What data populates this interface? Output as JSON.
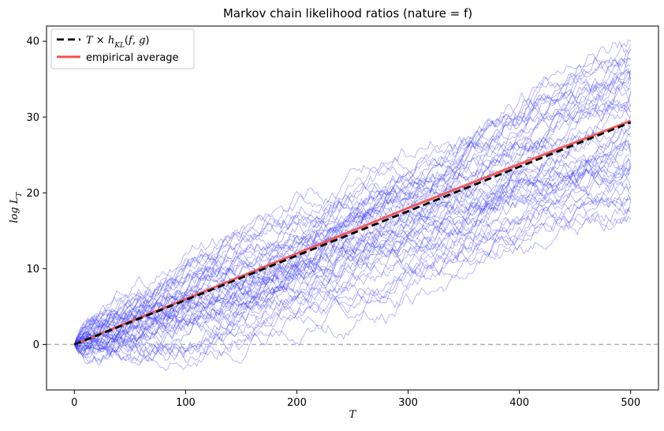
{
  "chart_data": {
    "type": "line",
    "title": "Markov chain likelihood ratios (nature = f)",
    "xlabel": "T",
    "ylabel": "log L_T",
    "xlim": [
      -25,
      525
    ],
    "ylim": [
      -6,
      42
    ],
    "xticks": [
      0,
      100,
      200,
      300,
      400,
      500
    ],
    "yticks": [
      0,
      10,
      20,
      30,
      40
    ],
    "grid": false,
    "legend": {
      "placement": "top-left",
      "entries": [
        {
          "label": "T × h_KL(f, g)",
          "style": "dashed",
          "color": "#000000"
        },
        {
          "label": "empirical average",
          "style": "solid",
          "color": "#ef5350"
        }
      ]
    },
    "reference_line": {
      "y": 0,
      "style": "dashed",
      "color": "#b0b0b0"
    },
    "series": [
      {
        "kind": "theoretical",
        "x": [
          0,
          500
        ],
        "y": [
          0,
          29.3
        ],
        "color": "#000000"
      },
      {
        "kind": "empirical_average",
        "x": [
          0,
          100,
          200,
          300,
          400,
          500
        ],
        "y": [
          0,
          6,
          12,
          18,
          23.8,
          29.5
        ],
        "color": "#ef5350"
      },
      {
        "kind": "sample_paths",
        "count": 50,
        "x_max": 500,
        "end_range": [
          17,
          40
        ],
        "min_value": -3.5,
        "color": "#3333ff"
      }
    ]
  }
}
